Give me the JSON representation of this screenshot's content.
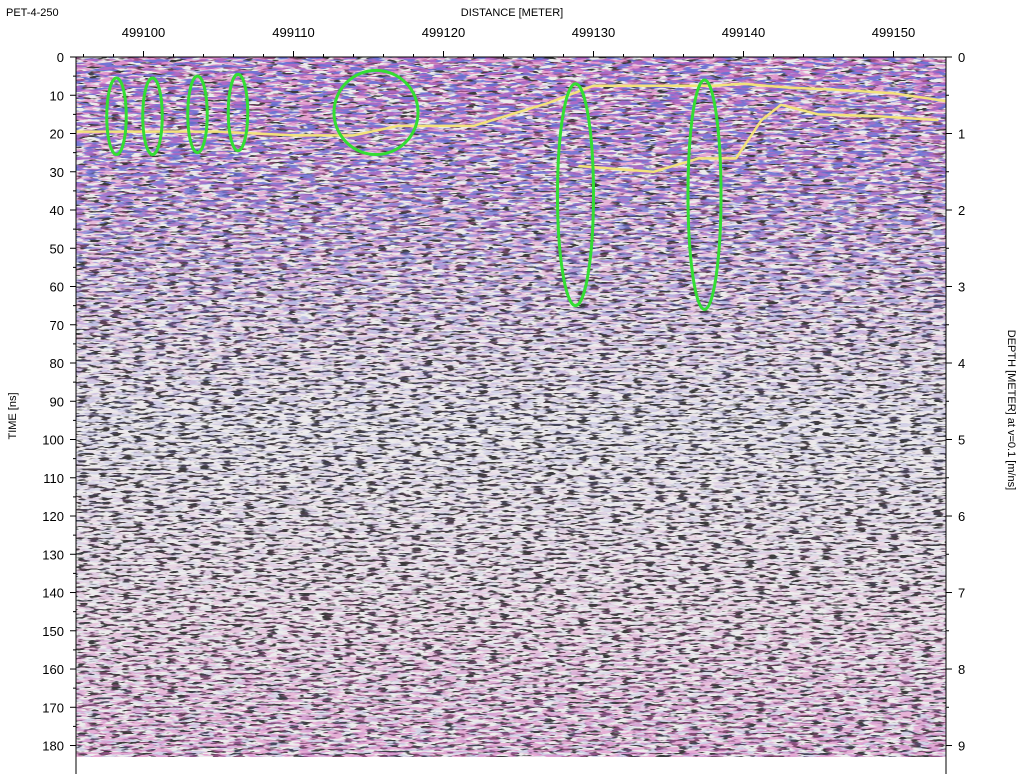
{
  "header": {
    "profile_id": "PET-4-250"
  },
  "chart_data": {
    "type": "heatmap",
    "title": "",
    "xlabel": "DISTANCE [METER]",
    "ylabel": "TIME [ns]",
    "y2label": "DEPTH [METER] at v=0.1 [m/ns]",
    "xlim": [
      499095.5,
      499153.5
    ],
    "ylim": [
      0,
      183
    ],
    "y2lim": [
      0,
      9.15
    ],
    "x_ticks": [
      499100,
      499110,
      499120,
      499130,
      499140,
      499150
    ],
    "x_tick_labels": [
      "499100",
      "499110",
      "499120",
      "499130",
      "499140",
      "499150"
    ],
    "y_ticks": [
      0,
      10,
      20,
      30,
      40,
      50,
      60,
      70,
      80,
      90,
      100,
      110,
      120,
      130,
      140,
      150,
      160,
      170,
      180
    ],
    "y_tick_labels": [
      "0",
      "10",
      "20",
      "30",
      "40",
      "50",
      "60",
      "70",
      "80",
      "90",
      "100",
      "110",
      "120",
      "130",
      "140",
      "150",
      "160",
      "170",
      "180"
    ],
    "y2_ticks": [
      0,
      1,
      2,
      3,
      4,
      5,
      6,
      7,
      8,
      9
    ],
    "y2_tick_labels": [
      "0",
      "1",
      "2",
      "3",
      "4",
      "5",
      "6",
      "7",
      "8",
      "9"
    ],
    "grid": false,
    "colors": {
      "positive_amplitude": "#2c2fb0",
      "negative_amplitude": "#b0207a",
      "neutral_amplitude": "#8a8a8a",
      "ellipse_annotation": "#33dd33",
      "interpreted_horizon": "#f2e27a"
    },
    "annotations": {
      "ellipses": [
        {
          "cx": 499098.2,
          "cy": 15.5,
          "rx": 0.65,
          "ry": 10
        },
        {
          "cx": 499100.6,
          "cy": 15.5,
          "rx": 0.65,
          "ry": 10
        },
        {
          "cx": 499103.6,
          "cy": 15,
          "rx": 0.65,
          "ry": 10
        },
        {
          "cx": 499106.3,
          "cy": 14.5,
          "rx": 0.65,
          "ry": 10
        },
        {
          "cx": 499115.5,
          "cy": 14.5,
          "rx": 2.8,
          "ry": 11
        },
        {
          "cx": 499128.8,
          "cy": 36,
          "rx": 1.2,
          "ry": 29
        },
        {
          "cx": 499137.4,
          "cy": 36,
          "rx": 1.1,
          "ry": 30
        }
      ],
      "horizons": [
        {
          "x": [
            499095.5,
            499100,
            499105,
            499110,
            499114,
            499117,
            499122,
            499127,
            499130,
            499134,
            499138,
            499140,
            499143,
            499146,
            499150,
            499153.5
          ],
          "y": [
            19.5,
            19.5,
            19.5,
            20.5,
            20.5,
            18,
            18,
            12,
            7.5,
            7.5,
            7.5,
            7,
            8,
            8.5,
            9.5,
            11.5
          ]
        },
        {
          "x": [
            499129,
            499134,
            499137,
            499139.5,
            499141.2,
            499142.5,
            499145,
            499149,
            499153
          ],
          "y": [
            28.5,
            30,
            26.5,
            26.5,
            16.5,
            12.5,
            15,
            15.5,
            16.5
          ]
        }
      ]
    }
  }
}
